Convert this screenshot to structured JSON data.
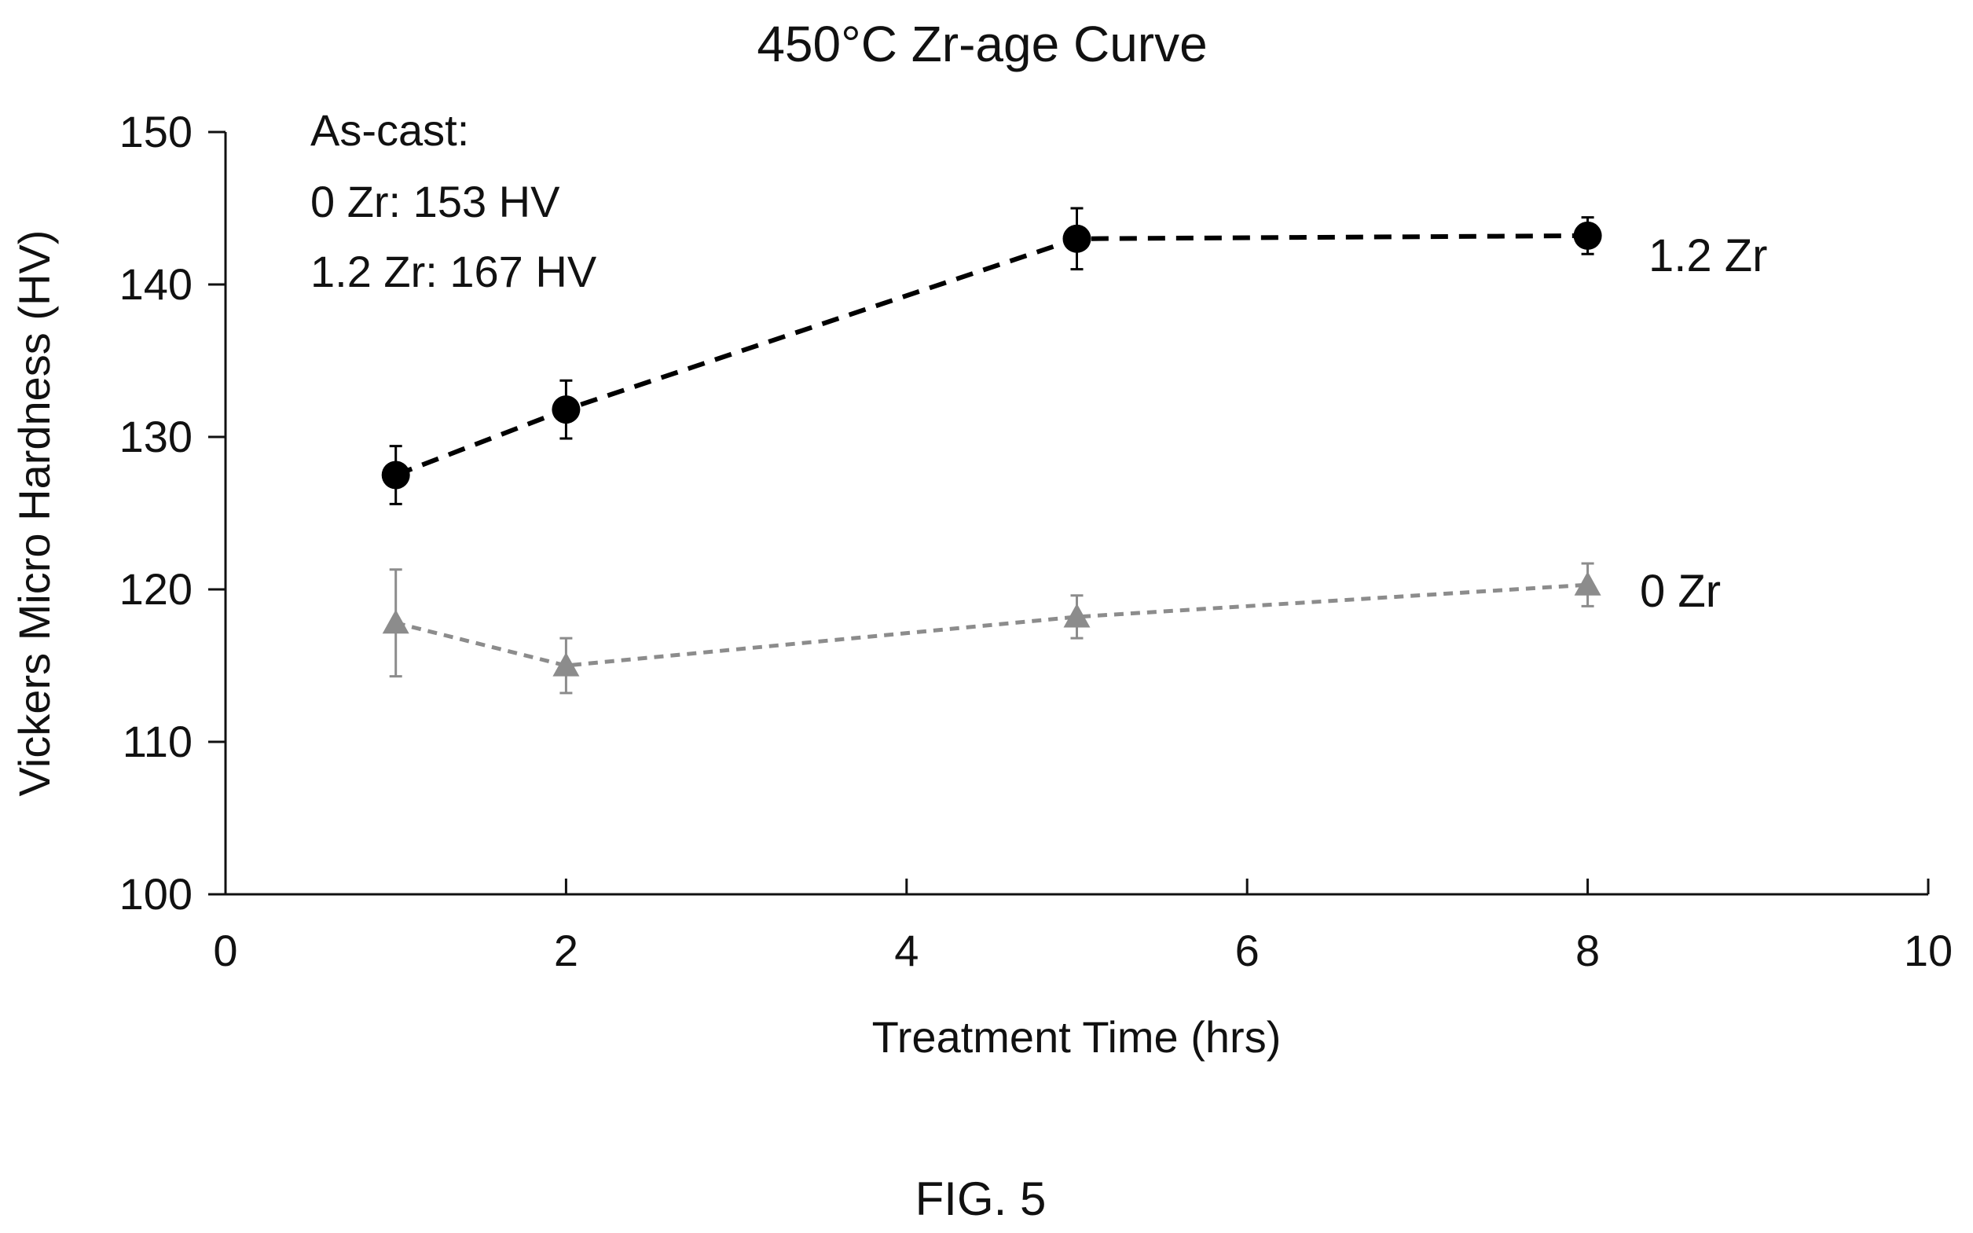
{
  "chart_data": {
    "type": "scatter",
    "title": "450°C Zr-age Curve",
    "xlabel": "Treatment Time (hrs)",
    "ylabel": "Vickers Micro Hardness (HV)",
    "xlim": [
      0,
      10
    ],
    "ylim": [
      100,
      150
    ],
    "xticks": [
      0,
      2,
      4,
      6,
      8,
      10
    ],
    "yticks": [
      100,
      110,
      120,
      130,
      140,
      150
    ],
    "grid": false,
    "legend": "none",
    "annotation_lines": [
      "As-cast:",
      "0 Zr: 153 HV",
      "1.2 Zr: 167 HV"
    ],
    "series": [
      {
        "name": "1.2 Zr",
        "marker": "circle",
        "line": "dashed",
        "color": "#000000",
        "x": [
          1,
          2,
          5,
          8
        ],
        "y": [
          127.5,
          131.8,
          143.0,
          143.2
        ],
        "yerr": [
          1.9,
          1.9,
          2.0,
          1.2
        ]
      },
      {
        "name": "0 Zr",
        "marker": "triangle",
        "line": "dashed",
        "color": "#8c8c8c",
        "x": [
          1,
          2,
          5,
          8
        ],
        "y": [
          117.8,
          115.0,
          118.2,
          120.3
        ],
        "yerr": [
          3.5,
          1.8,
          1.4,
          1.4
        ]
      }
    ]
  },
  "figure_label": "FIG. 5"
}
